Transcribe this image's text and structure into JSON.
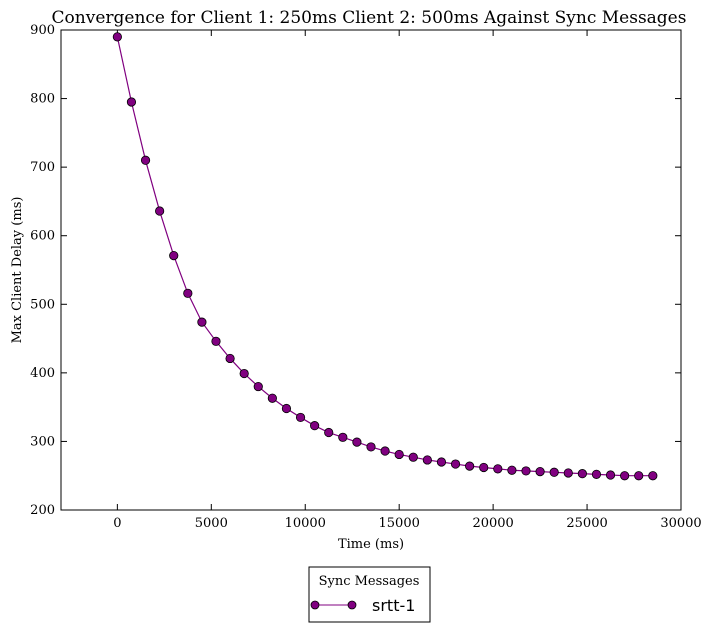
{
  "chart_data": {
    "type": "line",
    "title": "Convergence for Client 1: 250ms Client 2: 500ms Against Sync Messages",
    "xlabel": "Time (ms)",
    "ylabel": "Max Client Delay (ms)",
    "xlim": [
      -3000,
      30000
    ],
    "ylim": [
      200,
      900
    ],
    "xticks": [
      0,
      5000,
      10000,
      15000,
      20000,
      25000,
      30000
    ],
    "yticks": [
      200,
      300,
      400,
      500,
      600,
      700,
      800,
      900
    ],
    "grid": false,
    "legend": {
      "title": "Sync Messages",
      "placement": "bottom-center"
    },
    "series": [
      {
        "name": "srtt-1",
        "color": "#800080",
        "marker": "circle",
        "x": [
          0,
          750,
          1500,
          2250,
          3000,
          3750,
          4500,
          5250,
          6000,
          6750,
          7500,
          8250,
          9000,
          9750,
          10500,
          11250,
          12000,
          12750,
          13500,
          14250,
          15000,
          15750,
          16500,
          17250,
          18000,
          18750,
          19500,
          20250,
          21000,
          21750,
          22500,
          23250,
          24000,
          24750,
          25500,
          26250,
          27000,
          27750,
          28500
        ],
        "y": [
          890,
          795,
          710,
          636,
          571,
          516,
          474,
          446,
          421,
          399,
          380,
          363,
          348,
          335,
          323,
          313,
          306,
          299,
          292,
          286,
          281,
          277,
          273,
          270,
          267,
          264,
          262,
          260,
          258,
          257,
          256,
          255,
          254,
          253,
          252,
          251,
          250,
          250,
          250
        ]
      }
    ]
  }
}
